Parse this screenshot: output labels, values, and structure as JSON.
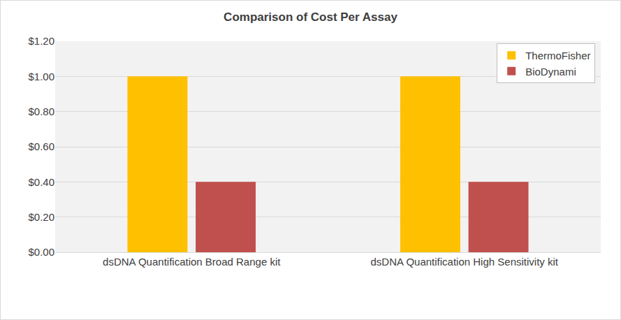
{
  "chart_data": {
    "type": "bar",
    "title": "Comparison of Cost Per Assay",
    "categories": [
      "dsDNA Quantification Broad Range kit",
      "dsDNA Quantification High Sensitivity kit"
    ],
    "series": [
      {
        "name": "ThermoFisher",
        "color": "#FFC000",
        "values": [
          1.0,
          1.0
        ]
      },
      {
        "name": "BioDynami",
        "color": "#C0504D",
        "values": [
          0.4,
          0.4
        ]
      }
    ],
    "ylim": [
      0,
      1.2
    ],
    "yticks": [
      {
        "value": 0,
        "label": "$0.00"
      },
      {
        "value": 0.2,
        "label": "$0.20"
      },
      {
        "value": 0.4,
        "label": "$0.40"
      },
      {
        "value": 0.6,
        "label": "$0.60"
      },
      {
        "value": 0.8,
        "label": "$0.80"
      },
      {
        "value": 1.0,
        "label": "$1.00"
      },
      {
        "value": 1.2,
        "label": "$1.20"
      }
    ],
    "grid": true,
    "legend": "top right"
  }
}
